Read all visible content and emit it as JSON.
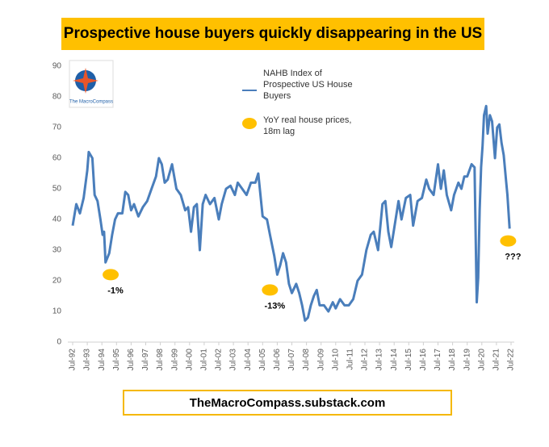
{
  "chart_data": {
    "type": "line",
    "title": "Prospective house buyers quickly disappearing in the US",
    "footer": "TheMacroCompass.substack.com",
    "logo_text": "The MacroCompass",
    "xlim": [
      1992.5,
      2022.5
    ],
    "xticks": [
      {
        "value": 1992.5,
        "label": "Jul-92"
      },
      {
        "value": 1993.5,
        "label": "Jul-93"
      },
      {
        "value": 1994.5,
        "label": "Jul-94"
      },
      {
        "value": 1995.5,
        "label": "Jul-95"
      },
      {
        "value": 1996.5,
        "label": "Jul-96"
      },
      {
        "value": 1997.5,
        "label": "Jul-97"
      },
      {
        "value": 1998.5,
        "label": "Jul-98"
      },
      {
        "value": 1999.5,
        "label": "Jul-99"
      },
      {
        "value": 2000.5,
        "label": "Jul-00"
      },
      {
        "value": 2001.5,
        "label": "Jul-01"
      },
      {
        "value": 2002.5,
        "label": "Jul-02"
      },
      {
        "value": 2003.5,
        "label": "Jul-03"
      },
      {
        "value": 2004.5,
        "label": "Jul-04"
      },
      {
        "value": 2005.5,
        "label": "Jul-05"
      },
      {
        "value": 2006.5,
        "label": "Jul-06"
      },
      {
        "value": 2007.5,
        "label": "Jul-07"
      },
      {
        "value": 2008.5,
        "label": "Jul-08"
      },
      {
        "value": 2009.5,
        "label": "Jul-09"
      },
      {
        "value": 2010.5,
        "label": "Jul-10"
      },
      {
        "value": 2011.5,
        "label": "Jul-11"
      },
      {
        "value": 2012.5,
        "label": "Jul-12"
      },
      {
        "value": 2013.5,
        "label": "Jul-13"
      },
      {
        "value": 2014.5,
        "label": "Jul-14"
      },
      {
        "value": 2015.5,
        "label": "Jul-15"
      },
      {
        "value": 2016.5,
        "label": "Jul-16"
      },
      {
        "value": 2017.5,
        "label": "Jul-17"
      },
      {
        "value": 2018.5,
        "label": "Jul-18"
      },
      {
        "value": 2019.5,
        "label": "Jul-19"
      },
      {
        "value": 2020.5,
        "label": "Jul-20"
      },
      {
        "value": 2021.5,
        "label": "Jul-21"
      },
      {
        "value": 2022.5,
        "label": "Jul-22"
      }
    ],
    "ylim": [
      0,
      90
    ],
    "yticks": [
      0,
      10,
      20,
      30,
      40,
      50,
      60,
      70,
      80,
      90
    ],
    "series": [
      {
        "name": "NAHB Index of Prospective US House Buyers",
        "color": "#4a7ebb",
        "x": [
          1992.5,
          1992.75,
          1993.0,
          1993.25,
          1993.5,
          1993.6,
          1993.85,
          1994.0,
          1994.2,
          1994.4,
          1994.55,
          1994.65,
          1994.75,
          1995.0,
          1995.2,
          1995.4,
          1995.6,
          1995.9,
          1996.1,
          1996.3,
          1996.5,
          1996.7,
          1997.0,
          1997.3,
          1997.6,
          1997.9,
          1998.2,
          1998.4,
          1998.6,
          1998.8,
          1999.0,
          1999.3,
          1999.6,
          1999.9,
          2000.2,
          2000.4,
          2000.6,
          2000.8,
          2001.0,
          2001.2,
          2001.4,
          2001.6,
          2001.9,
          2002.2,
          2002.5,
          2002.7,
          2003.0,
          2003.3,
          2003.6,
          2003.8,
          2004.1,
          2004.4,
          2004.7,
          2005.0,
          2005.2,
          2005.5,
          2005.8,
          2006.0,
          2006.3,
          2006.5,
          2006.7,
          2006.9,
          2007.1,
          2007.3,
          2007.5,
          2007.8,
          2008.0,
          2008.2,
          2008.4,
          2008.6,
          2008.8,
          2009.0,
          2009.2,
          2009.4,
          2009.7,
          2010.0,
          2010.3,
          2010.5,
          2010.8,
          2011.1,
          2011.4,
          2011.7,
          2012.0,
          2012.3,
          2012.6,
          2012.9,
          2013.1,
          2013.4,
          2013.7,
          2013.9,
          2014.1,
          2014.3,
          2014.6,
          2014.8,
          2015.0,
          2015.3,
          2015.6,
          2015.8,
          2016.1,
          2016.4,
          2016.7,
          2016.9,
          2017.2,
          2017.5,
          2017.7,
          2017.9,
          2018.1,
          2018.4,
          2018.6,
          2018.9,
          2019.1,
          2019.3,
          2019.5,
          2019.8,
          2020.0,
          2020.15,
          2020.25,
          2020.35,
          2020.45,
          2020.55,
          2020.65,
          2020.8,
          2020.9,
          2021.05,
          2021.2,
          2021.4,
          2021.55,
          2021.7,
          2021.85,
          2022.0,
          2022.15,
          2022.25,
          2022.4
        ],
        "values": [
          38,
          45,
          42,
          47,
          56,
          62,
          60,
          48,
          46,
          40,
          35,
          36,
          26,
          29,
          35,
          40,
          42,
          42,
          49,
          48,
          43,
          45,
          41,
          44,
          46,
          50,
          54,
          60,
          58,
          52,
          53,
          58,
          50,
          48,
          43,
          44,
          36,
          44,
          45,
          30,
          45,
          48,
          45,
          47,
          40,
          45,
          50,
          51,
          48,
          52,
          50,
          48,
          52,
          52,
          55,
          41,
          40,
          35,
          28,
          22,
          25,
          29,
          26,
          19,
          16,
          19,
          16,
          12,
          7,
          8,
          12,
          15,
          17,
          12,
          12,
          10,
          13,
          11,
          14,
          12,
          12,
          14,
          20,
          22,
          30,
          35,
          36,
          30,
          45,
          46,
          36,
          31,
          40,
          46,
          40,
          47,
          48,
          38,
          46,
          47,
          53,
          50,
          48,
          58,
          50,
          56,
          48,
          43,
          48,
          52,
          50,
          54,
          54,
          58,
          57,
          13,
          21,
          43,
          57,
          64,
          74,
          77,
          68,
          74,
          72,
          60,
          70,
          71,
          65,
          61,
          53,
          48,
          37
        ]
      }
    ],
    "highlight": {
      "name": "YoY real house prices, 18m lag",
      "color": "#ffc000"
    },
    "annotations": [
      {
        "text": "-1%",
        "x": 1995.1,
        "y": 22
      },
      {
        "text": "-13%",
        "x": 2006.0,
        "y": 17
      },
      {
        "text": "???",
        "x": 2022.3,
        "y": 33
      }
    ]
  }
}
